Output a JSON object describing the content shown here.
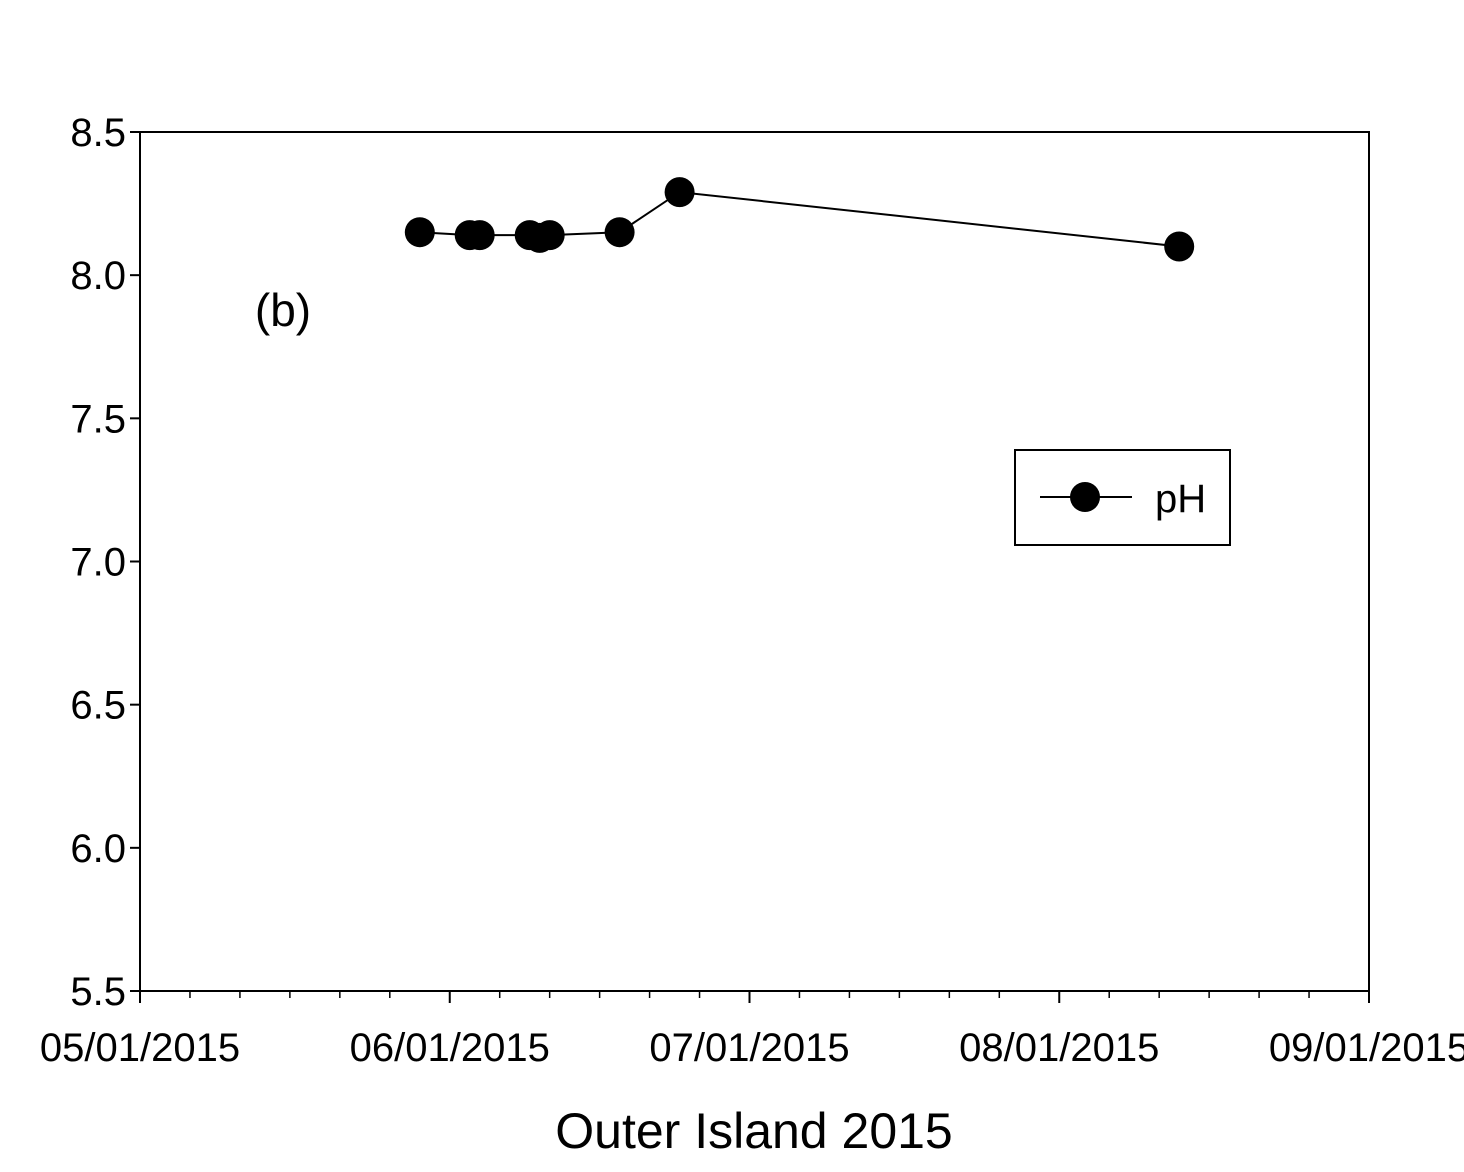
{
  "chart_data": {
    "type": "line",
    "title": "",
    "xlabel": "Outer Island 2015",
    "ylabel": "",
    "annotation": "(b)",
    "x_axis_type": "date",
    "xlim": [
      "2015-05-01",
      "2015-09-01"
    ],
    "x_ticks": [
      "05/01/2015",
      "06/01/2015",
      "07/01/2015",
      "08/01/2015",
      "09/01/2015"
    ],
    "ylim": [
      5.5,
      8.5
    ],
    "y_ticks": [
      "5.5",
      "6.0",
      "6.5",
      "7.0",
      "7.5",
      "8.0",
      "8.5"
    ],
    "grid": false,
    "legend_position": "right",
    "series": [
      {
        "name": "pH",
        "marker": "filled-circle",
        "color": "#000000",
        "points": [
          {
            "x": "2015-05-29",
            "y": 8.15
          },
          {
            "x": "2015-06-03",
            "y": 8.14
          },
          {
            "x": "2015-06-04",
            "y": 8.14
          },
          {
            "x": "2015-06-09",
            "y": 8.14
          },
          {
            "x": "2015-06-10",
            "y": 8.13
          },
          {
            "x": "2015-06-11",
            "y": 8.14
          },
          {
            "x": "2015-06-18",
            "y": 8.15
          },
          {
            "x": "2015-06-24",
            "y": 8.29
          },
          {
            "x": "2015-08-13",
            "y": 8.1
          }
        ]
      }
    ]
  }
}
